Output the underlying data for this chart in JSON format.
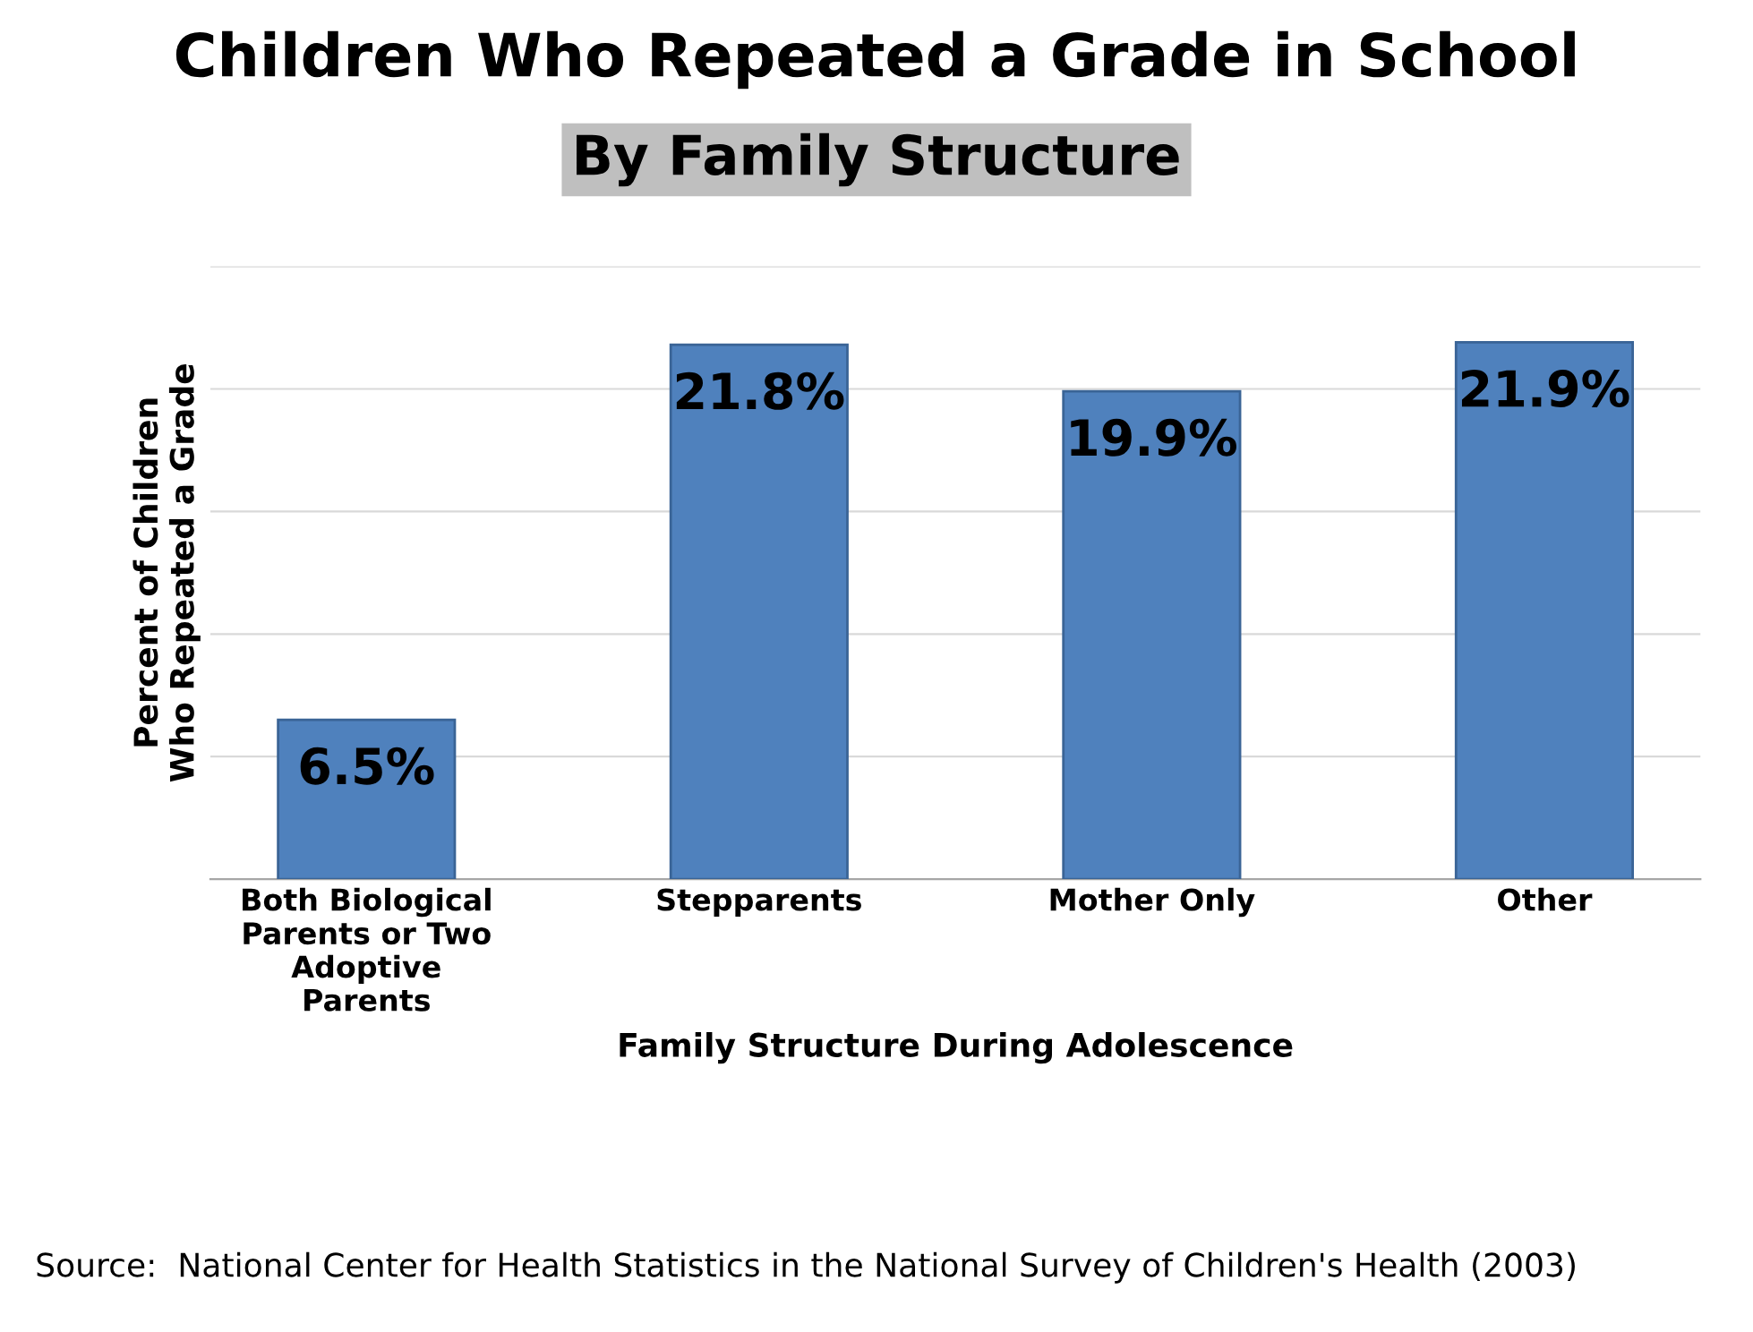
{
  "chart_data": {
    "type": "bar",
    "title": "Children Who Repeated a Grade in School",
    "subtitle": "By Family Structure",
    "xlabel": "Family Structure During Adolescence",
    "ylabel": "Percent of Children\nWho Repeated a Grade",
    "categories": [
      "Both Biological\nParents or Two\nAdoptive\nParents",
      "Stepparents",
      "Mother Only",
      "Other"
    ],
    "values": [
      6.5,
      21.8,
      19.9,
      21.9
    ],
    "value_labels": [
      "6.5%",
      "21.8%",
      "19.9%",
      "21.9%"
    ],
    "color": "#4f81bd",
    "ylim": [
      0,
      25
    ],
    "yticks": [
      {
        "value": 0,
        "label": null
      },
      {
        "value": 5,
        "label": null
      },
      {
        "value": 10,
        "label": null
      },
      {
        "value": 15,
        "label": null
      },
      {
        "value": 20,
        "label": null
      },
      {
        "value": 25,
        "label": null
      }
    ],
    "tick_labels": "x",
    "grid": "y",
    "legend": false,
    "annotations": [
      "Source:  National Center for Health Statistics in the National Survey of Children's Health (2003)"
    ]
  }
}
